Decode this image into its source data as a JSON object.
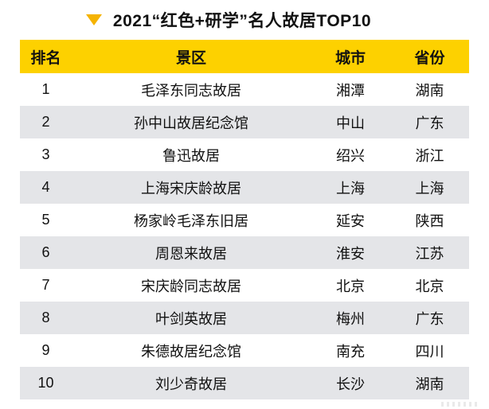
{
  "title": {
    "text": "2021“红色+研学”名人故居TOP10",
    "icon": "triangle-down-icon"
  },
  "colors": {
    "header_bg": "#FDD100",
    "triangle": "#F5B301",
    "row_alt": "#E4E5E8",
    "text": "#111111"
  },
  "chart_data": {
    "type": "table",
    "title": "2021“红色+研学”名人故居TOP10",
    "columns": [
      "排名",
      "景区",
      "城市",
      "省份"
    ],
    "rows": [
      [
        "1",
        "毛泽东同志故居",
        "湘潭",
        "湖南"
      ],
      [
        "2",
        "孙中山故居纪念馆",
        "中山",
        "广东"
      ],
      [
        "3",
        "鲁迅故居",
        "绍兴",
        "浙江"
      ],
      [
        "4",
        "上海宋庆龄故居",
        "上海",
        "上海"
      ],
      [
        "5",
        "杨家岭毛泽东旧居",
        "延安",
        "陕西"
      ],
      [
        "6",
        "周恩来故居",
        "淮安",
        "江苏"
      ],
      [
        "7",
        "宋庆龄同志故居",
        "北京",
        "北京"
      ],
      [
        "8",
        "叶剑英故居",
        "梅州",
        "广东"
      ],
      [
        "9",
        "朱德故居纪念馆",
        "南充",
        "四川"
      ],
      [
        "10",
        "刘少奇故居",
        "长沙",
        "湖南"
      ]
    ],
    "layout": {
      "header_style": "yellow-background-bold",
      "row_striping": "white-then-gray",
      "alignment": "center"
    }
  }
}
